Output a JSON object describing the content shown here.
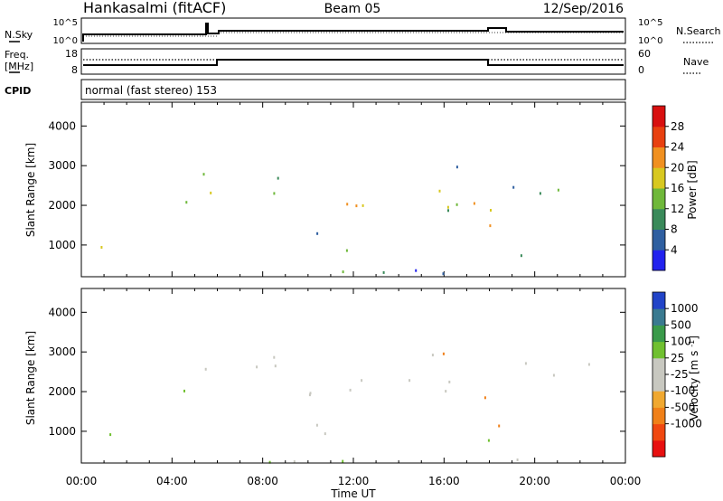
{
  "header": {
    "station": "Hankasalmi (fitACF)",
    "beam": "Beam 05",
    "date": "12/Sep/2016"
  },
  "noise_panel": {
    "left_label": "N.Sky",
    "right_label": "N.Search",
    "left_ticks": [
      "10^5",
      "10^0"
    ],
    "right_ticks": [
      "10^5",
      "10^0"
    ]
  },
  "freq_panel": {
    "left_label_1": "Freq.",
    "left_label_2": "[MHz]",
    "right_label": "Nave",
    "left_ticks": [
      "18",
      "8"
    ],
    "right_ticks": [
      "60",
      "0"
    ]
  },
  "cpid": {
    "label": "CPID",
    "text": "normal (fast stereo) 153"
  },
  "colors": {
    "power": [
      "#2222ee",
      "#2f5fa0",
      "#3a8a5a",
      "#6fb83a",
      "#d8c820",
      "#f09020",
      "#e84010",
      "#d81010"
    ],
    "velocity": [
      "#e81010",
      "#f04810",
      "#f08018",
      "#f0a830",
      "#c8c8c0",
      "#c8c8c0",
      "#70c030",
      "#3a9a4a",
      "#3a7a90",
      "#2244c8"
    ],
    "velocity_ground": "#c8c8c0"
  },
  "chart_data": [
    {
      "type": "heatmap",
      "name": "power",
      "ylabel": "Slant Range [km]",
      "xlabel": "Time UT",
      "x_ticks": [
        "00:00",
        "04:00",
        "08:00",
        "12:00",
        "16:00",
        "20:00",
        "00:00"
      ],
      "y_ticks": [
        "1000",
        "2000",
        "3000",
        "4000"
      ],
      "ylim": [
        200,
        4600
      ],
      "xlim": [
        0,
        24
      ],
      "colorbar": {
        "label": "Power [dB]",
        "ticks": [
          "4",
          "8",
          "12",
          "16",
          "20",
          "24",
          "28"
        ],
        "range": [
          0,
          32
        ]
      }
    },
    {
      "type": "heatmap",
      "name": "velocity",
      "ylabel": "Slant Range [km]",
      "xlabel": "Time UT",
      "x_ticks": [
        "00:00",
        "04:00",
        "08:00",
        "12:00",
        "16:00",
        "20:00",
        "00:00"
      ],
      "y_ticks": [
        "1000",
        "2000",
        "3000",
        "4000"
      ],
      "ylim": [
        200,
        4600
      ],
      "xlim": [
        0,
        24
      ],
      "colorbar": {
        "label": "Velocity [m s^-1]",
        "ticks": [
          "1000",
          "500",
          "100",
          "25",
          "-25",
          "-100",
          "-500",
          "-1000"
        ]
      }
    }
  ]
}
